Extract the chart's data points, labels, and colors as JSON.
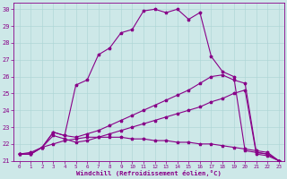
{
  "xlabel": "Windchill (Refroidissement éolien,°C)",
  "background_color": "#cde8e8",
  "line_color": "#880088",
  "xlim": [
    -0.5,
    23.5
  ],
  "ylim": [
    21,
    30.4
  ],
  "xticks": [
    0,
    1,
    2,
    3,
    4,
    5,
    6,
    7,
    8,
    9,
    10,
    11,
    12,
    13,
    14,
    15,
    16,
    17,
    18,
    19,
    20,
    21,
    22,
    23
  ],
  "yticks": [
    21,
    22,
    23,
    24,
    25,
    26,
    27,
    28,
    29,
    30
  ],
  "series1_x": [
    0,
    1,
    2,
    3,
    4,
    5,
    6,
    7,
    8,
    9,
    10,
    11,
    12,
    13,
    14,
    15,
    16,
    17,
    18,
    19,
    20,
    21,
    22,
    23
  ],
  "series1_y": [
    21.4,
    21.4,
    21.8,
    22.7,
    22.5,
    25.5,
    25.8,
    27.3,
    27.7,
    28.6,
    28.8,
    29.9,
    30.0,
    29.8,
    30.0,
    29.4,
    29.8,
    27.2,
    26.3,
    26.0,
    21.6,
    21.5,
    21.4,
    21.0
  ],
  "series2_x": [
    0,
    1,
    2,
    3,
    4,
    5,
    6,
    7,
    8,
    9,
    10,
    11,
    12,
    13,
    14,
    15,
    16,
    17,
    18,
    19,
    20,
    21,
    22,
    23
  ],
  "series2_y": [
    21.4,
    21.4,
    21.8,
    22.7,
    22.5,
    22.4,
    22.6,
    22.8,
    23.1,
    23.4,
    23.7,
    24.0,
    24.3,
    24.6,
    24.9,
    25.2,
    25.6,
    26.0,
    26.1,
    25.8,
    25.6,
    21.5,
    21.4,
    21.0
  ],
  "series3_x": [
    0,
    1,
    2,
    3,
    4,
    5,
    6,
    7,
    8,
    9,
    10,
    11,
    12,
    13,
    14,
    15,
    16,
    17,
    18,
    19,
    20,
    21,
    22,
    23
  ],
  "series3_y": [
    21.4,
    21.4,
    21.8,
    22.5,
    22.3,
    22.1,
    22.2,
    22.4,
    22.6,
    22.8,
    23.0,
    23.2,
    23.4,
    23.6,
    23.8,
    24.0,
    24.2,
    24.5,
    24.7,
    25.0,
    25.2,
    21.4,
    21.3,
    21.0
  ],
  "series4_x": [
    0,
    1,
    2,
    3,
    4,
    5,
    6,
    7,
    8,
    9,
    10,
    11,
    12,
    13,
    14,
    15,
    16,
    17,
    18,
    19,
    20,
    21,
    22,
    23
  ],
  "series4_y": [
    21.4,
    21.5,
    21.8,
    22.0,
    22.2,
    22.3,
    22.4,
    22.4,
    22.4,
    22.4,
    22.3,
    22.3,
    22.2,
    22.2,
    22.1,
    22.1,
    22.0,
    22.0,
    21.9,
    21.8,
    21.7,
    21.6,
    21.5,
    21.0
  ]
}
